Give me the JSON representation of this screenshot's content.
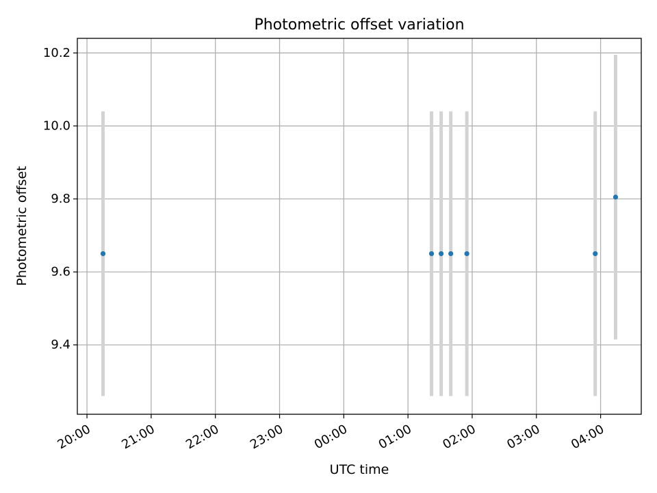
{
  "chart_data": {
    "type": "scatter",
    "title": "Photometric offset variation",
    "xlabel": "UTC time",
    "ylabel": "Photometric offset",
    "grid": true,
    "x_axis_type": "time",
    "xlim": [
      "19:51",
      "04:38"
    ],
    "ylim": [
      9.21,
      10.24
    ],
    "x_ticks": [
      "20:00",
      "21:00",
      "22:00",
      "23:00",
      "00:00",
      "01:00",
      "02:00",
      "03:00",
      "04:00"
    ],
    "y_ticks": [
      "9.4",
      "9.6",
      "9.8",
      "10.0",
      "10.2"
    ],
    "series": [
      {
        "x": [
          "20:15",
          "01:22",
          "01:31",
          "01:40",
          "01:55",
          "03:55",
          "04:14"
        ],
        "y": [
          9.65,
          9.65,
          9.65,
          9.65,
          9.65,
          9.65,
          9.805
        ],
        "yerr": [
          0.39,
          0.39,
          0.39,
          0.39,
          0.39,
          0.39,
          0.39
        ],
        "color": "#1f77b4",
        "errorbar_color": "#d3d3d3"
      }
    ],
    "colors": {
      "grid": "#b0b0b0",
      "axes": "#000000",
      "marker": "#1f77b4",
      "errorbar": "#d3d3d3"
    }
  }
}
